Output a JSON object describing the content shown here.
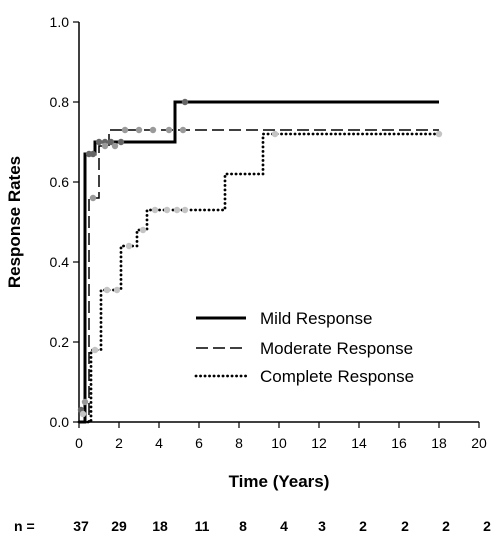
{
  "chart_data": {
    "type": "line",
    "title": "",
    "xlabel": "Time (Years)",
    "ylabel": "Response Rates",
    "xlim": [
      0,
      20
    ],
    "ylim": [
      0,
      1
    ],
    "xticks": [
      "0",
      "2",
      "4",
      "6",
      "8",
      "10",
      "12",
      "14",
      "16",
      "18",
      "20"
    ],
    "yticks": [
      "0.0",
      "0.2",
      "0.4",
      "0.6",
      "0.8",
      "1.0"
    ],
    "grid": false,
    "legend_position": "bottom-right",
    "series": [
      {
        "name": "Mild Response",
        "style": "solid",
        "points": [
          [
            0,
            0
          ],
          [
            0.3,
            0
          ],
          [
            0.3,
            0.67
          ],
          [
            0.8,
            0.67
          ],
          [
            0.8,
            0.7
          ],
          [
            4.8,
            0.7
          ],
          [
            4.8,
            0.8
          ],
          [
            18,
            0.8
          ]
        ],
        "censored": [
          [
            0.1,
            0.03
          ],
          [
            0.5,
            0.67
          ],
          [
            0.7,
            0.67
          ],
          [
            1.0,
            0.7
          ],
          [
            1.3,
            0.7
          ],
          [
            1.6,
            0.7
          ],
          [
            2.1,
            0.7
          ],
          [
            5.3,
            0.8
          ]
        ]
      },
      {
        "name": "Moderate Response",
        "style": "dashed",
        "points": [
          [
            0,
            0
          ],
          [
            0.5,
            0
          ],
          [
            0.5,
            0.56
          ],
          [
            1.0,
            0.56
          ],
          [
            1.0,
            0.69
          ],
          [
            1.5,
            0.69
          ],
          [
            1.5,
            0.73
          ],
          [
            18,
            0.73
          ]
        ],
        "censored": [
          [
            0.3,
            0.05
          ],
          [
            0.7,
            0.56
          ],
          [
            1.3,
            0.69
          ],
          [
            1.8,
            0.69
          ],
          [
            2.3,
            0.73
          ],
          [
            3.0,
            0.73
          ],
          [
            3.7,
            0.73
          ],
          [
            4.5,
            0.73
          ],
          [
            5.2,
            0.73
          ]
        ]
      },
      {
        "name": "Complete Response",
        "style": "dotted",
        "points": [
          [
            0,
            0
          ],
          [
            0.6,
            0
          ],
          [
            0.6,
            0.18
          ],
          [
            1.1,
            0.18
          ],
          [
            1.1,
            0.33
          ],
          [
            2.1,
            0.33
          ],
          [
            2.1,
            0.44
          ],
          [
            2.9,
            0.44
          ],
          [
            2.9,
            0.48
          ],
          [
            3.4,
            0.48
          ],
          [
            3.4,
            0.53
          ],
          [
            7.3,
            0.53
          ],
          [
            7.3,
            0.62
          ],
          [
            9.2,
            0.62
          ],
          [
            9.2,
            0.72
          ],
          [
            18,
            0.72
          ]
        ],
        "censored": [
          [
            0.2,
            0.02
          ],
          [
            0.8,
            0.18
          ],
          [
            1.4,
            0.33
          ],
          [
            1.9,
            0.33
          ],
          [
            2.5,
            0.44
          ],
          [
            3.2,
            0.48
          ],
          [
            3.8,
            0.53
          ],
          [
            4.4,
            0.53
          ],
          [
            4.9,
            0.53
          ],
          [
            5.3,
            0.53
          ],
          [
            9.8,
            0.72
          ],
          [
            18,
            0.72
          ]
        ]
      }
    ],
    "number_at_risk": {
      "label": "n =",
      "values": [
        "37",
        "29",
        "18",
        "11",
        "8",
        "4",
        "3",
        "2",
        "2",
        "2",
        "2"
      ]
    }
  },
  "colors": {
    "line": "#000000",
    "censor_mild": "#666666",
    "censor_moderate": "#9a9a9a",
    "censor_complete": "#c4c4c4"
  }
}
